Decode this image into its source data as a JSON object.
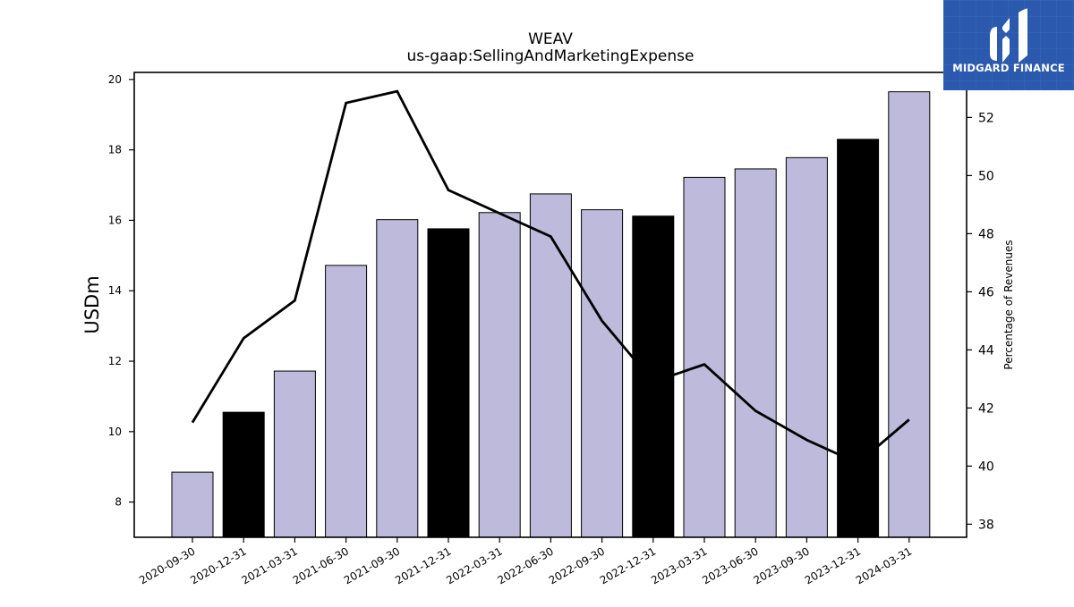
{
  "chart_data": {
    "type": "bar",
    "title": "WEAV",
    "subtitle": "us-gaap:SellingAndMarketingExpense",
    "ylabel": "USDm",
    "y2label": "Percentage of Revenues",
    "categories": [
      "2020-09-30",
      "2020-12-31",
      "2021-03-31",
      "2021-06-30",
      "2021-09-30",
      "2021-12-31",
      "2022-03-31",
      "2022-06-30",
      "2022-09-30",
      "2022-12-31",
      "2023-03-31",
      "2023-06-30",
      "2023-09-30",
      "2023-12-31",
      "2024-03-31"
    ],
    "series": [
      {
        "kind": "bar",
        "axis": "left",
        "values": [
          8.85,
          10.55,
          11.72,
          14.72,
          16.02,
          15.76,
          16.22,
          16.75,
          16.3,
          16.12,
          17.22,
          17.46,
          17.78,
          18.3,
          19.65
        ]
      },
      {
        "kind": "line",
        "axis": "right",
        "values": [
          41.5,
          44.4,
          45.7,
          52.5,
          52.9,
          49.5,
          48.7,
          47.9,
          45.0,
          42.9,
          43.5,
          41.9,
          40.9,
          40.1,
          41.6
        ]
      }
    ],
    "bar_colors": [
      "#bdbadb",
      "#000000",
      "#bdbadb",
      "#bdbadb",
      "#bdbadb",
      "#000000",
      "#bdbadb",
      "#bdbadb",
      "#bdbadb",
      "#000000",
      "#bdbadb",
      "#bdbadb",
      "#bdbadb",
      "#000000",
      "#bdbadb"
    ],
    "line_color": "#000000",
    "ylim": [
      7,
      20.2
    ],
    "y2lim": [
      37.55,
      53.55
    ],
    "yticks": [
      8,
      10,
      12,
      14,
      16,
      18,
      20
    ],
    "y2ticks": [
      38,
      40,
      42,
      44,
      46,
      48,
      50,
      52
    ],
    "grid": false,
    "legend": "none"
  },
  "logo": {
    "text": "MIDGARD FINANCE",
    "color": "#2b59ad"
  }
}
